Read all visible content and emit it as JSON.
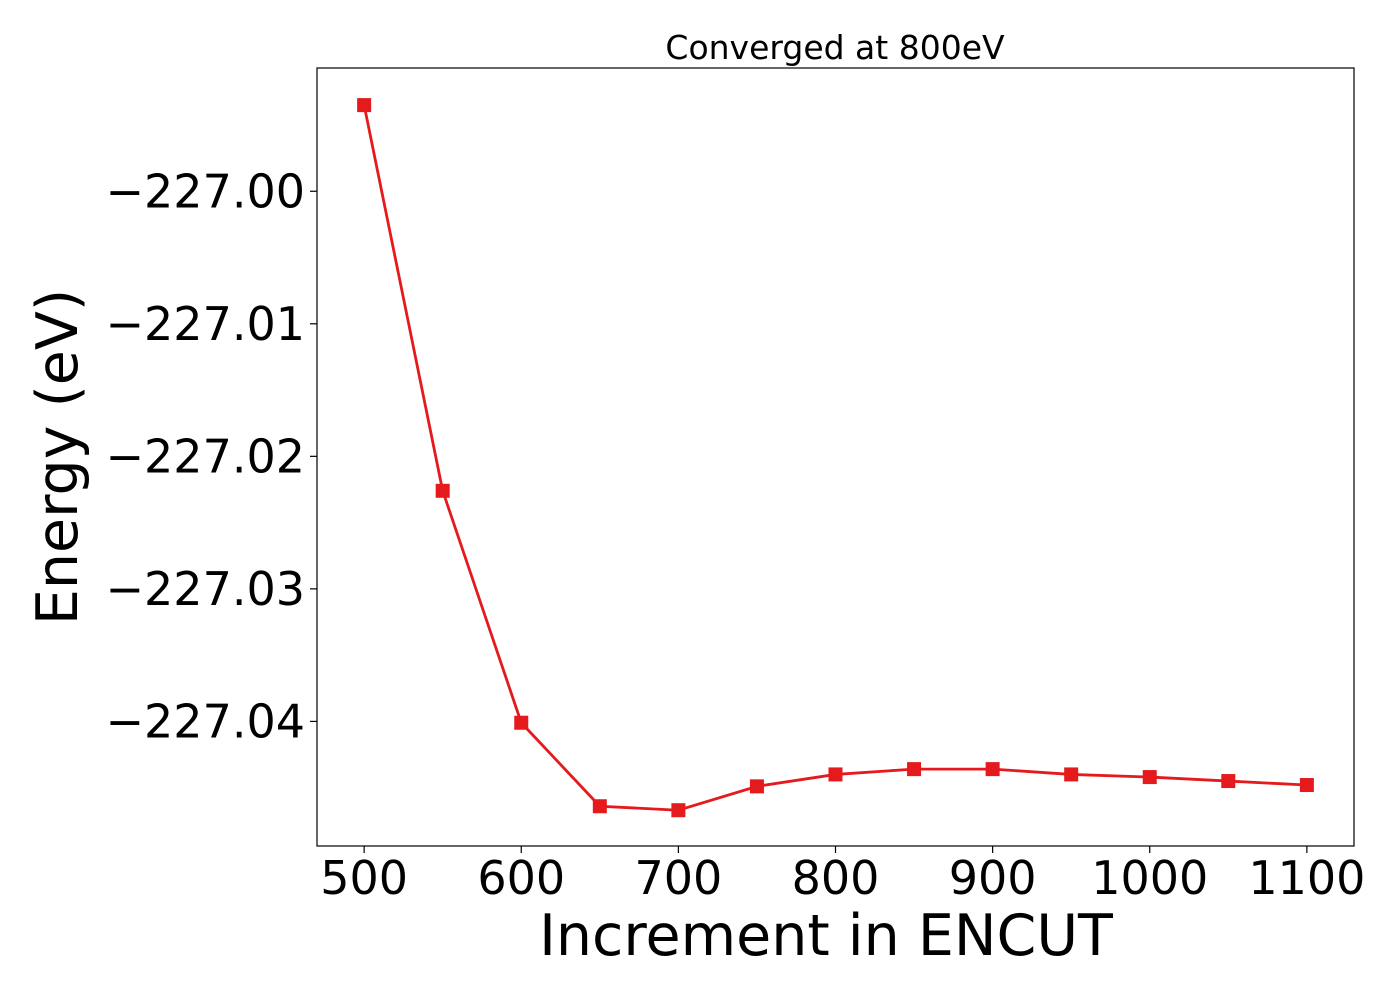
{
  "chart_data": {
    "type": "line",
    "title": "Converged at 800eV",
    "xlabel": "Increment in ENCUT",
    "ylabel": "Energy (eV)",
    "x": [
      500,
      550,
      600,
      650,
      700,
      750,
      800,
      850,
      900,
      950,
      1000,
      1050,
      1100
    ],
    "series": [
      {
        "values": [
          -226.9935,
          -227.0226,
          -227.0401,
          -227.0464,
          -227.0467,
          -227.0449,
          -227.044,
          -227.0436,
          -227.0436,
          -227.044,
          -227.0442,
          -227.0445,
          -227.0448
        ],
        "color": "#e41a1c",
        "marker": "square"
      }
    ],
    "xlim": [
      470,
      1130
    ],
    "ylim": [
      -227.0494,
      -226.9907
    ],
    "xticks": [
      500,
      600,
      700,
      800,
      900,
      1000,
      1100
    ],
    "xtick_labels": [
      "500",
      "600",
      "700",
      "800",
      "900",
      "1000",
      "1100"
    ],
    "yticks": [
      -227.0,
      -227.01,
      -227.02,
      -227.03,
      -227.04
    ],
    "ytick_labels": [
      "−227.00",
      "−227.01",
      "−227.02",
      "−227.03",
      "−227.04"
    ],
    "grid": false,
    "legend": "none"
  }
}
